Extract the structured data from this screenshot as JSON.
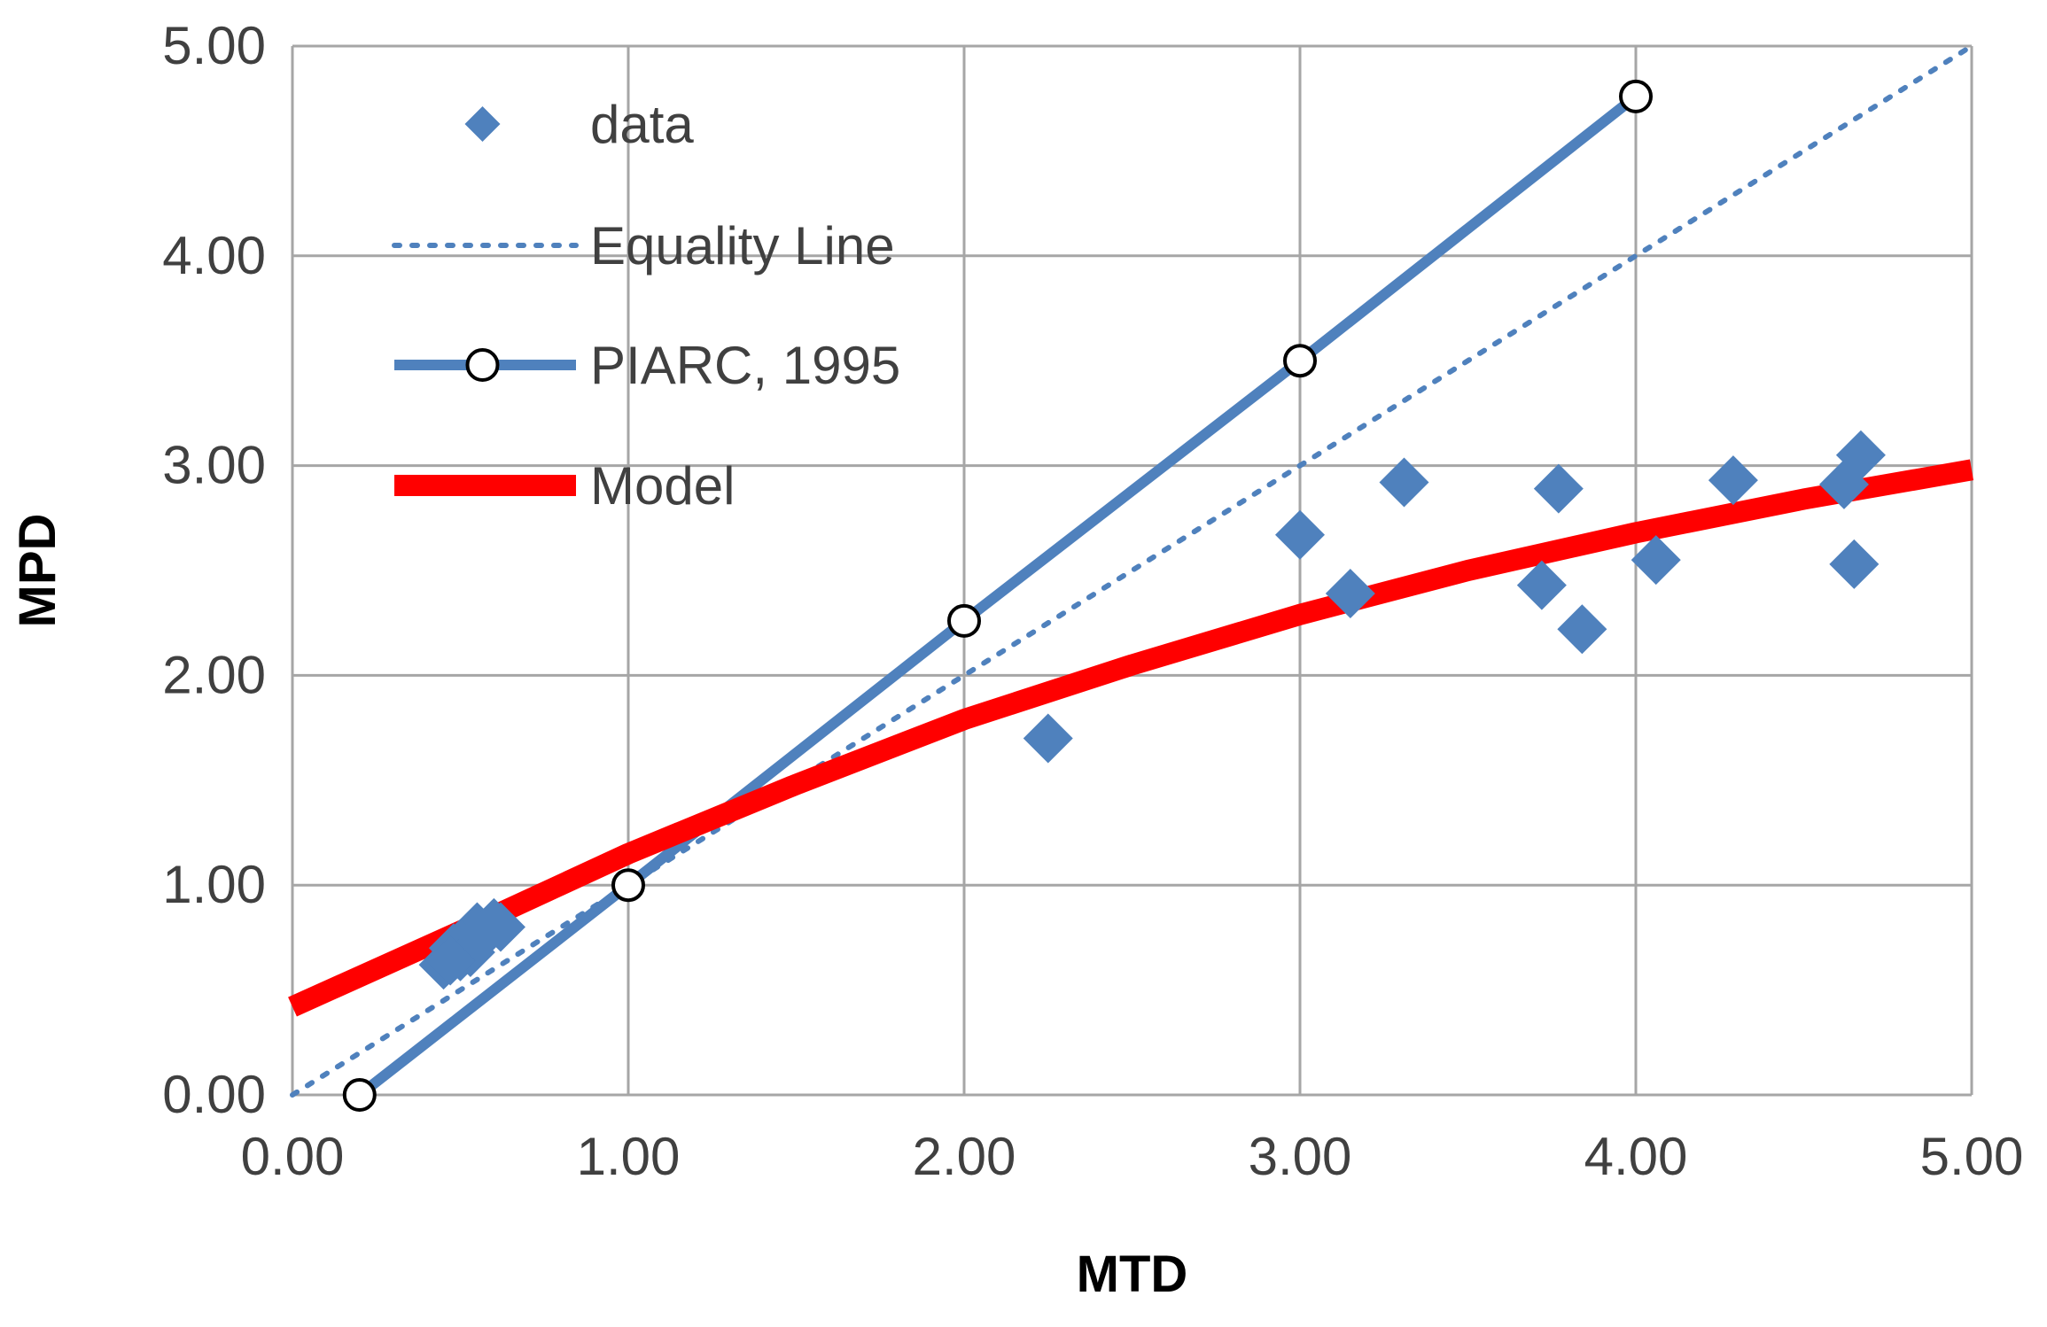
{
  "chart_data": {
    "type": "scatter",
    "title": "",
    "xlabel": "MTD",
    "ylabel": "MPD",
    "xlim": [
      0,
      5
    ],
    "ylim": [
      0,
      5
    ],
    "grid": true,
    "x_ticks": [
      "0.00",
      "1.00",
      "2.00",
      "3.00",
      "4.00",
      "5.00"
    ],
    "y_ticks": [
      "0.00",
      "1.00",
      "2.00",
      "3.00",
      "4.00",
      "5.00"
    ],
    "legend_position": "top-left",
    "series": [
      {
        "name": "data",
        "kind": "scatter",
        "marker": "diamond",
        "color": "#4f81bd",
        "points": [
          [
            0.45,
            0.62
          ],
          [
            0.48,
            0.7
          ],
          [
            0.5,
            0.66
          ],
          [
            0.52,
            0.74
          ],
          [
            0.55,
            0.8
          ],
          [
            0.5,
            0.72
          ],
          [
            0.58,
            0.78
          ],
          [
            0.6,
            0.82
          ],
          [
            0.53,
            0.68
          ],
          [
            0.47,
            0.64
          ],
          [
            0.56,
            0.76
          ],
          [
            0.62,
            0.8
          ],
          [
            2.25,
            1.7
          ],
          [
            3.0,
            2.67
          ],
          [
            3.15,
            2.39
          ],
          [
            3.31,
            2.92
          ],
          [
            3.72,
            2.43
          ],
          [
            3.77,
            2.89
          ],
          [
            3.84,
            2.22
          ],
          [
            4.06,
            2.55
          ],
          [
            4.29,
            2.93
          ],
          [
            4.62,
            2.91
          ],
          [
            4.65,
            2.53
          ],
          [
            4.67,
            3.05
          ]
        ]
      },
      {
        "name": "Equality Line",
        "kind": "line",
        "style": "dotted",
        "color": "#4f81bd",
        "points": [
          [
            0,
            0
          ],
          [
            5,
            5
          ]
        ]
      },
      {
        "name": "PIARC, 1995",
        "kind": "line-markers",
        "marker": "circle",
        "color": "#4f81bd",
        "points": [
          [
            0.2,
            0.0
          ],
          [
            1.0,
            1.0
          ],
          [
            2.0,
            2.26
          ],
          [
            3.0,
            3.5
          ],
          [
            4.0,
            4.76
          ]
        ]
      },
      {
        "name": "Model",
        "kind": "curve",
        "color": "#ff0000",
        "points": [
          [
            0,
            0.42
          ],
          [
            0.5,
            0.78
          ],
          [
            1.0,
            1.15
          ],
          [
            1.5,
            1.48
          ],
          [
            2.0,
            1.79
          ],
          [
            2.5,
            2.05
          ],
          [
            3.0,
            2.29
          ],
          [
            3.5,
            2.5
          ],
          [
            4.0,
            2.68
          ],
          [
            4.5,
            2.84
          ],
          [
            5.0,
            2.98
          ]
        ]
      }
    ]
  }
}
